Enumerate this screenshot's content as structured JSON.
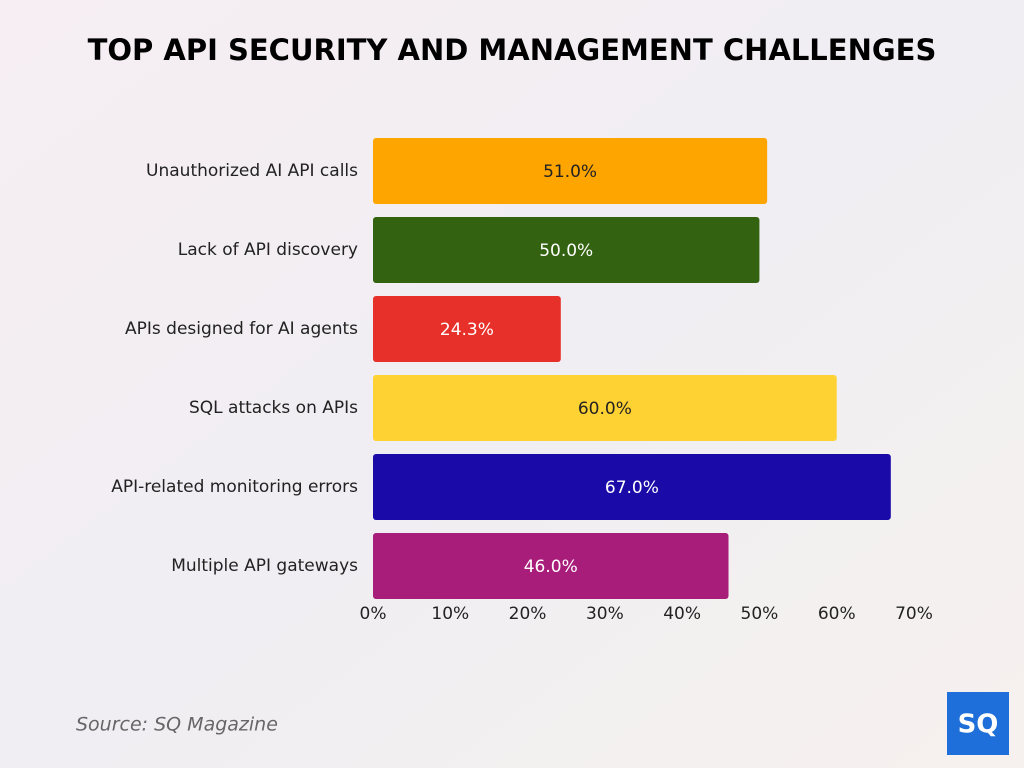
{
  "chart_data": {
    "type": "hbar",
    "title": "TOP API SECURITY AND MANAGEMENT CHALLENGES",
    "categories": [
      "Unauthorized AI API calls",
      "Lack of API discovery",
      "APIs designed for AI agents",
      "SQL attacks on APIs",
      "API-related monitoring errors",
      "Multiple API gateways"
    ],
    "values": [
      51.0,
      50.0,
      24.3,
      60.0,
      67.0,
      46.0
    ],
    "value_labels": [
      "51.0%",
      "50.0%",
      "24.3%",
      "60.0%",
      "67.0%",
      "46.0%"
    ],
    "colors": [
      "#ffa500",
      "#336311",
      "#e8302a",
      "#ffd233",
      "#1a0aa8",
      "#a81c7a"
    ],
    "xlim": [
      0,
      70
    ],
    "xticks": [
      {
        "value": 0,
        "label": "0%"
      },
      {
        "value": 10,
        "label": "10%"
      },
      {
        "value": 20,
        "label": "20%"
      },
      {
        "value": 30,
        "label": "30%"
      },
      {
        "value": 40,
        "label": "40%"
      },
      {
        "value": 50,
        "label": "50%"
      },
      {
        "value": 60,
        "label": "60%"
      },
      {
        "value": 70,
        "label": "70%"
      }
    ],
    "grid": false,
    "source": "Source: SQ Magazine",
    "logo": "SQ"
  }
}
